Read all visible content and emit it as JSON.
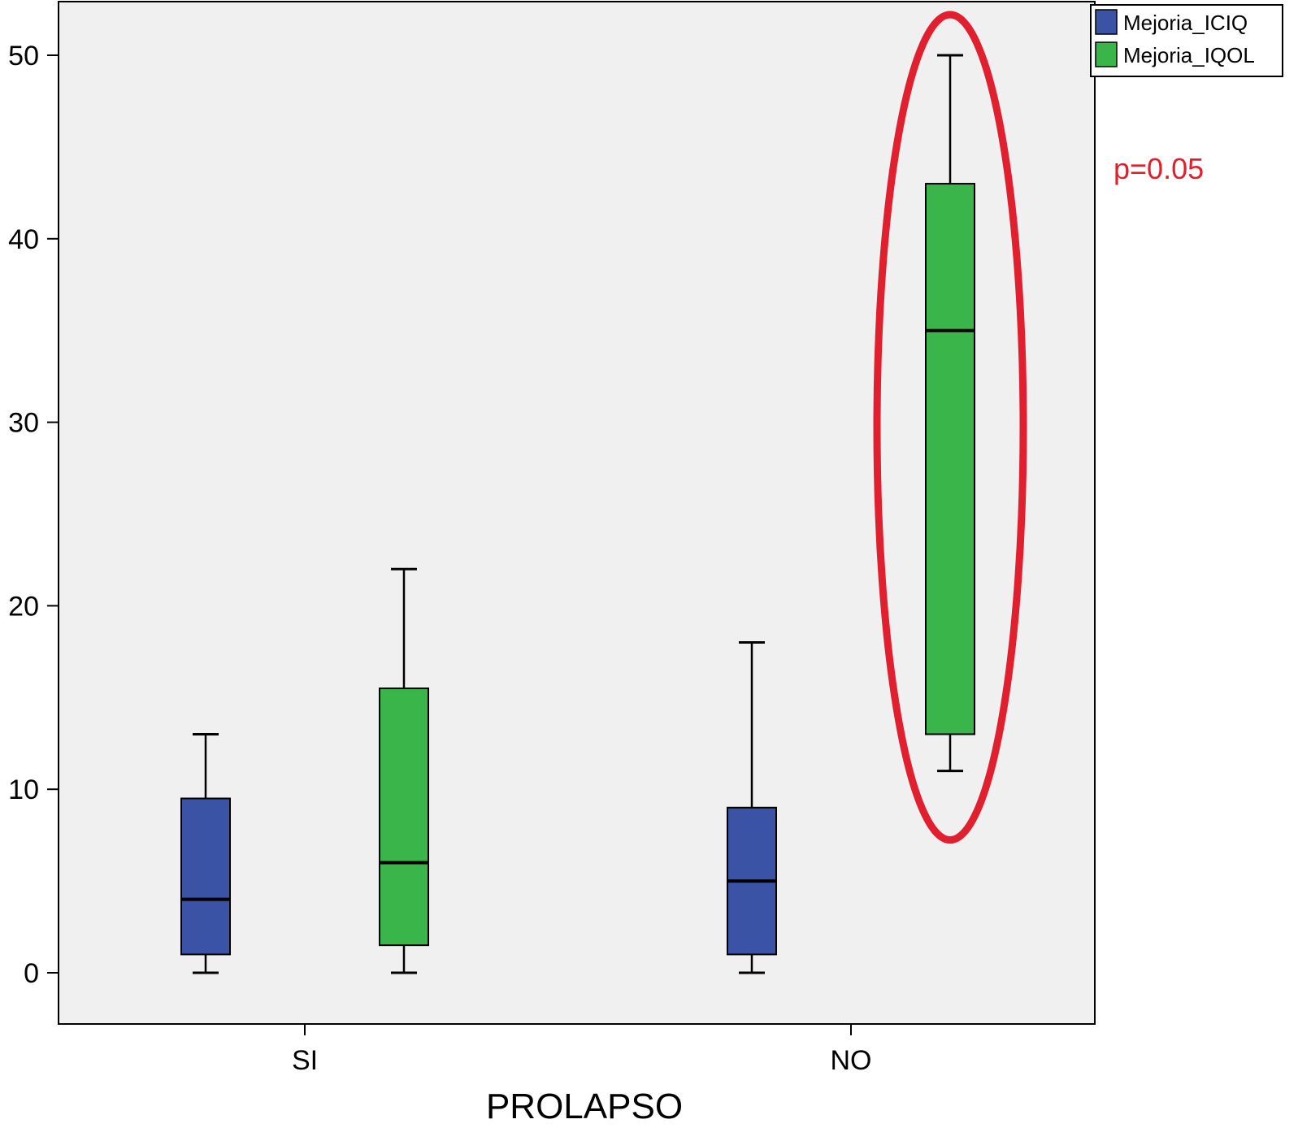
{
  "chart_data": {
    "type": "box",
    "xlabel": "PROLAPSO",
    "ylabel": "",
    "ylim": [
      -2.7,
      52.5
    ],
    "yticks": [
      0,
      10,
      20,
      30,
      40,
      50
    ],
    "grid": false,
    "legend_position": "top-right",
    "categories": [
      "SI",
      "NO"
    ],
    "series": [
      {
        "name": "Mejoria_ICIQ",
        "color": "#3a53a4",
        "boxes": [
          {
            "category": "SI",
            "min": 0,
            "q1": 1,
            "median": 4,
            "q3": 9.5,
            "max": 13
          },
          {
            "category": "NO",
            "min": 0,
            "q1": 1,
            "median": 5,
            "q3": 9,
            "max": 18
          }
        ]
      },
      {
        "name": "Mejoria_IQOL",
        "color": "#39b54a",
        "boxes": [
          {
            "category": "SI",
            "min": 0,
            "q1": 1.5,
            "median": 6,
            "q3": 15.5,
            "max": 22
          },
          {
            "category": "NO",
            "min": 11,
            "q1": 13,
            "median": 35,
            "q3": 43,
            "max": 50
          }
        ]
      }
    ],
    "annotations": [
      {
        "text": "p=0.05",
        "color": "#e0202e"
      }
    ],
    "highlight": {
      "category": "NO",
      "series": "Mejoria_IQOL",
      "color": "#e0202e"
    }
  }
}
